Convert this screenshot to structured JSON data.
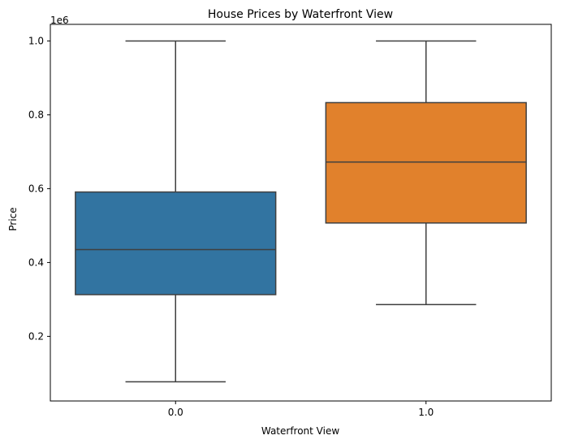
{
  "chart_data": {
    "type": "box",
    "title": "House Prices by Waterfront View",
    "xlabel": "Waterfront View",
    "ylabel": "Price",
    "y_offset_label": "1e6",
    "ylim": [
      0.025,
      1.045
    ],
    "yticks": [
      0.2,
      0.4,
      0.6,
      0.8,
      1.0
    ],
    "ytick_labels": [
      "0.2",
      "0.4",
      "0.6",
      "0.8",
      "1.0"
    ],
    "categories": [
      "0.0",
      "1.0"
    ],
    "grid": false,
    "series": [
      {
        "category": "0.0",
        "whisker_low": 0.077,
        "q1": 0.313,
        "median": 0.435,
        "q3": 0.591,
        "whisker_high": 1.0,
        "color": "#3274a1"
      },
      {
        "category": "1.0",
        "whisker_low": 0.286,
        "q1": 0.507,
        "median": 0.672,
        "q3": 0.833,
        "whisker_high": 1.0,
        "color": "#e1812c"
      }
    ]
  }
}
